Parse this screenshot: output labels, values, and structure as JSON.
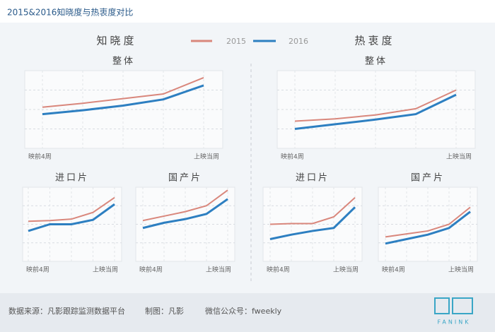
{
  "title": "2015&2016知晓度与热衷度对比",
  "groups": [
    "知晓度",
    "热衷度"
  ],
  "footer": {
    "source": "数据来源：凡影跟踪监测数据平台",
    "maker": "制图：凡影",
    "wechat": "微信公众号：fweekly",
    "logo": "FANINK"
  },
  "chart_data": [
    {
      "type": "line",
      "title": "整体",
      "categories": [
        "映前4周",
        null,
        null,
        null,
        "上映当周"
      ],
      "ylim": [
        0,
        100
      ],
      "grid": true,
      "series": [
        {
          "name": "2015",
          "color": "#d9877c",
          "values": [
            53,
            58,
            64,
            70,
            91
          ]
        },
        {
          "name": "2016",
          "color": "#2d7fc1",
          "values": [
            44,
            49,
            55,
            63,
            81
          ]
        }
      ]
    },
    {
      "type": "line",
      "title": "整体",
      "categories": [
        "映前4周",
        null,
        null,
        null,
        "上映当周"
      ],
      "ylim": [
        0,
        100
      ],
      "grid": true,
      "series": [
        {
          "color": "#d9877c",
          "values": [
            35,
            38,
            43,
            51,
            75
          ]
        },
        {
          "color": "#2d7fc1",
          "values": [
            25,
            31,
            37,
            44,
            69
          ]
        }
      ]
    },
    {
      "type": "line",
      "title": "进口片",
      "categories": [
        "映前4周",
        null,
        null,
        null,
        "上映当周"
      ],
      "ylim": [
        0,
        100
      ],
      "grid": true,
      "series": [
        {
          "color": "#d9877c",
          "values": [
            54,
            55,
            57,
            66,
            86
          ]
        },
        {
          "color": "#2d7fc1",
          "values": [
            41,
            50,
            50,
            56,
            77
          ]
        }
      ]
    },
    {
      "type": "line",
      "title": "国产片",
      "categories": [
        "映前4周",
        null,
        null,
        null,
        "上映当周"
      ],
      "ylim": [
        0,
        100
      ],
      "grid": true,
      "series": [
        {
          "color": "#d9877c",
          "values": [
            55,
            61,
            67,
            75,
            96
          ]
        },
        {
          "color": "#2d7fc1",
          "values": [
            45,
            52,
            57,
            64,
            84
          ]
        }
      ]
    },
    {
      "type": "line",
      "title": "进口片",
      "categories": [
        "映前4周",
        null,
        null,
        null,
        "上映当周"
      ],
      "ylim": [
        0,
        100
      ],
      "grid": true,
      "series": [
        {
          "color": "#d9877c",
          "values": [
            50,
            51,
            51,
            60,
            86
          ]
        },
        {
          "color": "#2d7fc1",
          "values": [
            30,
            36,
            41,
            45,
            73
          ]
        }
      ]
    },
    {
      "type": "line",
      "title": "国产片",
      "categories": [
        "映前4周",
        null,
        null,
        null,
        "上映当周"
      ],
      "ylim": [
        0,
        100
      ],
      "grid": true,
      "series": [
        {
          "color": "#d9877c",
          "values": [
            33,
            37,
            41,
            50,
            73
          ]
        },
        {
          "color": "#2d7fc1",
          "values": [
            24,
            30,
            36,
            45,
            67
          ]
        }
      ]
    }
  ]
}
